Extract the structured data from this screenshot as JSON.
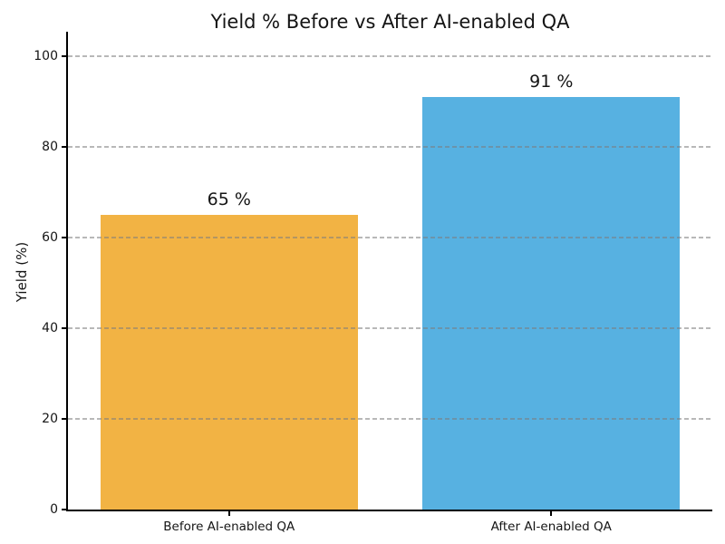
{
  "figure": {
    "background": "#ffffff",
    "text_color": "#151515",
    "spine_color": "#000000"
  },
  "chart_data": {
    "type": "bar",
    "title": "Yield % Before vs After AI-enabled QA",
    "xlabel": "",
    "ylabel": "Yield (%)",
    "categories": [
      "Before AI-enabled QA",
      "After AI-enabled QA"
    ],
    "values": [
      65,
      91
    ],
    "bar_labels": [
      "65 %",
      "91 %"
    ],
    "bar_colors": [
      "#F2B344",
      "#57B1E1"
    ],
    "yticks": [
      0,
      20,
      40,
      60,
      80,
      100
    ],
    "ytick_labels": [
      "0",
      "20",
      "40",
      "60",
      "80",
      "100"
    ],
    "ylim": [
      0,
      105
    ],
    "bar_width_fraction": 0.8,
    "grid": {
      "axis": "y",
      "linestyle": "dashed",
      "color": "#7D7D7D",
      "alpha": 0.55,
      "drawn_over_bars": true
    },
    "legend": "none"
  }
}
